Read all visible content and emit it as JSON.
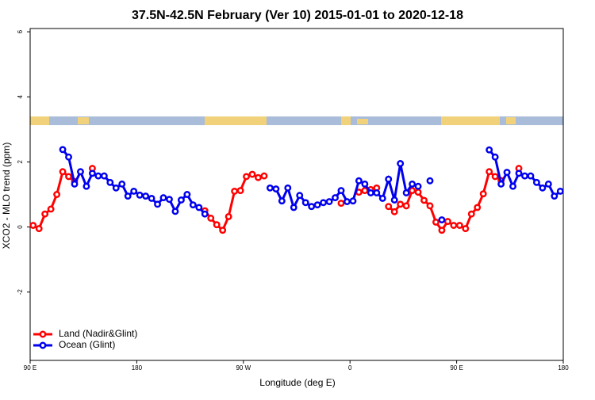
{
  "chart_data": {
    "type": "line",
    "title": "37.5N-42.5N February (Ver 10)   2015-01-01 to 2020-12-18",
    "xlabel": "Longitude (deg E)",
    "ylabel": "XCO2 - MLO trend (ppm)",
    "x": [
      92.5,
      97.5,
      102.5,
      107.5,
      112.5,
      117.5,
      122.5,
      127.5,
      132.5,
      137.5,
      142.5,
      147.5,
      152.5,
      157.5,
      162.5,
      167.5,
      172.5,
      177.5,
      182.5,
      187.5,
      192.5,
      197.5,
      202.5,
      207.5,
      212.5,
      217.5,
      222.5,
      227.5,
      232.5,
      237.5,
      242.5,
      247.5,
      252.5,
      257.5,
      262.5,
      267.5,
      272.5,
      277.5,
      282.5,
      287.5,
      292.5,
      297.5,
      302.5,
      307.5,
      312.5,
      317.5,
      322.5,
      327.5,
      332.5,
      337.5,
      342.5,
      347.5,
      352.5,
      357.5,
      362.5,
      367.5,
      372.5,
      377.5,
      382.5,
      387.5,
      392.5,
      397.5,
      402.5,
      407.5,
      412.5,
      417.5,
      422.5,
      427.5,
      432.5,
      437.5,
      442.5,
      447.5,
      452.5,
      457.5,
      462.5,
      467.5,
      472.5,
      477.5,
      482.5,
      487.5,
      492.5,
      497.5,
      502.5,
      507.5,
      512.5,
      517.5,
      522.5,
      527.5,
      532.5,
      537.5
    ],
    "series": [
      {
        "name": "Land (Nadir&Glint)",
        "color": "#ff0000",
        "values": [
          0.05,
          -0.05,
          0.4,
          0.55,
          1.0,
          1.7,
          1.55,
          1.4,
          null,
          null,
          1.8,
          null,
          null,
          null,
          null,
          null,
          null,
          null,
          null,
          null,
          null,
          null,
          null,
          null,
          null,
          null,
          null,
          null,
          null,
          0.5,
          0.27,
          0.07,
          -0.1,
          0.32,
          1.1,
          1.12,
          1.55,
          1.62,
          1.52,
          1.57,
          null,
          null,
          null,
          null,
          null,
          null,
          null,
          null,
          null,
          null,
          null,
          null,
          0.73,
          null,
          null,
          1.07,
          1.12,
          1.15,
          1.2,
          null,
          0.63,
          0.47,
          0.7,
          0.65,
          1.12,
          1.07,
          0.82,
          0.65,
          0.15,
          -0.1,
          0.17,
          0.05,
          0.05,
          -0.05,
          0.4,
          0.6,
          1.02,
          1.7,
          1.55,
          1.43,
          null,
          null,
          1.8,
          null,
          null,
          null,
          null,
          null,
          null,
          null
        ]
      },
      {
        "name": "Ocean (Glint)",
        "color": "#0000ee",
        "values": [
          null,
          null,
          null,
          null,
          null,
          2.38,
          2.15,
          1.32,
          1.7,
          1.25,
          1.65,
          1.57,
          1.57,
          1.37,
          1.2,
          1.32,
          0.95,
          1.1,
          0.98,
          0.95,
          0.88,
          0.7,
          0.9,
          0.85,
          0.48,
          0.83,
          1.0,
          0.68,
          0.6,
          0.4,
          null,
          null,
          null,
          null,
          null,
          null,
          null,
          null,
          null,
          null,
          1.2,
          1.17,
          0.8,
          1.2,
          0.6,
          0.97,
          0.75,
          0.63,
          0.68,
          0.75,
          0.78,
          0.9,
          1.12,
          0.78,
          0.8,
          1.42,
          1.32,
          1.05,
          1.05,
          0.88,
          1.47,
          0.83,
          1.95,
          1.05,
          1.32,
          1.25,
          null,
          1.42,
          null,
          0.22,
          null,
          null,
          null,
          null,
          null,
          null,
          null,
          2.37,
          2.15,
          1.32,
          1.68,
          1.25,
          1.65,
          1.57,
          1.57,
          1.37,
          1.2,
          1.32,
          0.95,
          1.1
        ]
      }
    ],
    "xlim": [
      90,
      540
    ],
    "xticks": [
      {
        "value": 90,
        "label": "90 E"
      },
      180,
      {
        "value": 270,
        "label": "90 W"
      },
      {
        "value": 360,
        "label": "0"
      },
      {
        "value": 450,
        "label": "90 E"
      },
      {
        "value": 540,
        "label": "180"
      }
    ],
    "ylim": [
      -4.1,
      6.1
    ],
    "yticks": [
      -2,
      0,
      2,
      4,
      6
    ],
    "legend": "bottom-left"
  }
}
